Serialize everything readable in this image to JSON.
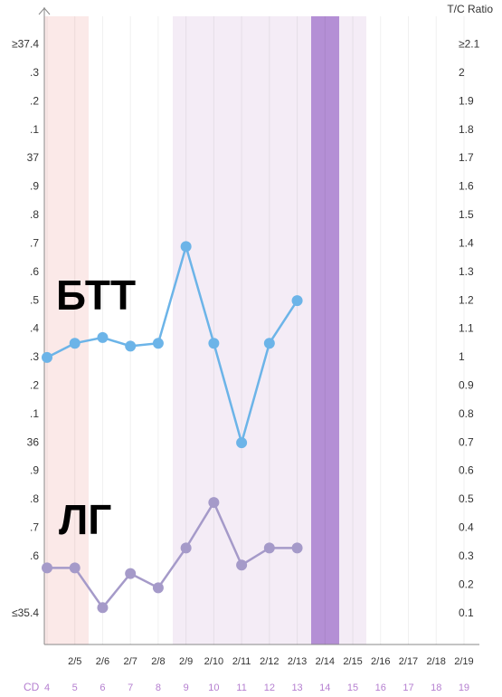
{
  "chart_data": {
    "type": "line",
    "y2_label": "T/C Ratio",
    "x_row_label": "CD",
    "annotations": [
      "БТТ",
      "ЛГ"
    ],
    "categories": [
      null,
      "2/5",
      "2/6",
      "2/7",
      "2/8",
      "2/9",
      "2/10",
      "2/11",
      "2/12",
      "2/13",
      "2/14",
      "2/15",
      "2/16",
      "2/17",
      "2/18",
      "2/19"
    ],
    "cycle_days": [
      4,
      5,
      6,
      7,
      8,
      9,
      10,
      11,
      12,
      13,
      14,
      15,
      16,
      17,
      18,
      19
    ],
    "series": [
      {
        "name": "БТТ",
        "color": "#6cb4e8",
        "values": [
          36.3,
          36.35,
          36.37,
          36.34,
          36.35,
          36.69,
          36.35,
          36.0,
          36.35,
          36.5,
          null,
          null,
          null,
          null,
          null,
          null
        ]
      },
      {
        "name": "ЛГ",
        "color": "#a59ac9",
        "axis": "y2",
        "values": [
          0.26,
          0.26,
          0.12,
          0.24,
          0.19,
          0.33,
          0.49,
          0.27,
          0.33,
          0.33,
          null,
          null,
          null,
          null,
          null,
          null
        ]
      }
    ],
    "ylim": [
      35.3,
      37.5
    ],
    "yticks": [
      {
        "value": 37.4,
        "label": "≥37.4"
      },
      {
        "value": 37.3,
        "label": ".3"
      },
      {
        "value": 37.2,
        "label": ".2"
      },
      {
        "value": 37.1,
        "label": ".1"
      },
      37,
      {
        "value": 36.9,
        "label": ".9"
      },
      {
        "value": 36.8,
        "label": ".8"
      },
      {
        "value": 36.7,
        "label": ".7"
      },
      {
        "value": 36.6,
        "label": ".6"
      },
      {
        "value": 36.5,
        "label": ".5"
      },
      {
        "value": 36.4,
        "label": ".4"
      },
      {
        "value": 36.3,
        "label": ".3"
      },
      {
        "value": 36.2,
        "label": ".2"
      },
      {
        "value": 36.1,
        "label": ".1"
      },
      36,
      {
        "value": 35.9,
        "label": ".9"
      },
      {
        "value": 35.8,
        "label": ".8"
      },
      {
        "value": 35.7,
        "label": ".7"
      },
      {
        "value": 35.6,
        "label": ".6"
      },
      {
        "value": 35.4,
        "label": "≤35.4"
      }
    ],
    "y2lim": [
      0,
      2.2
    ],
    "y2ticks": [
      {
        "value": 2.1,
        "label": "≥2.1"
      },
      2,
      1.9,
      1.8,
      1.7,
      1.6,
      1.5,
      1.4,
      1.3,
      1.2,
      1.1,
      1,
      0.9,
      0.8,
      0.7,
      0.6,
      0.5,
      0.4,
      0.3,
      0.2,
      0.1
    ]
  }
}
